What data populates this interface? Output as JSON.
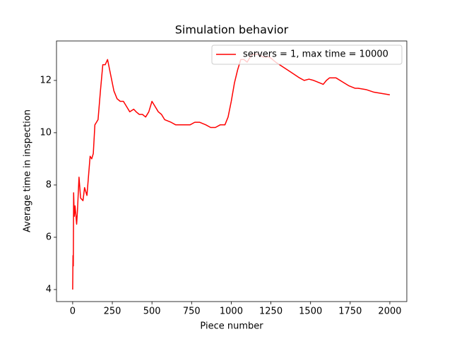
{
  "chart_data": {
    "type": "line",
    "title": "Simulation behavior",
    "x_label": "Piece number",
    "y_label": "Average time in inspection",
    "x": [
      0,
      2,
      4,
      6,
      10,
      15,
      25,
      30,
      40,
      50,
      65,
      75,
      90,
      110,
      120,
      130,
      140,
      150,
      160,
      175,
      190,
      205,
      220,
      240,
      260,
      280,
      300,
      320,
      340,
      360,
      385,
      400,
      420,
      440,
      460,
      480,
      500,
      520,
      540,
      560,
      580,
      620,
      650,
      700,
      740,
      770,
      800,
      840,
      870,
      900,
      930,
      960,
      980,
      1000,
      1020,
      1040,
      1060,
      1080,
      1100,
      1130,
      1170,
      1200,
      1240,
      1280,
      1330,
      1380,
      1430,
      1460,
      1490,
      1520,
      1560,
      1580,
      1600,
      1620,
      1660,
      1700,
      1740,
      1780,
      1800,
      1850,
      1900,
      1950,
      2000
    ],
    "series": [
      {
        "name": "servers = 1, max time = 10000",
        "color": "#ff0000",
        "values": [
          4.0,
          5.3,
          4.9,
          7.7,
          6.8,
          7.2,
          6.5,
          7.0,
          8.3,
          7.5,
          7.4,
          7.9,
          7.6,
          9.1,
          9.0,
          9.2,
          10.3,
          10.4,
          10.5,
          11.6,
          12.6,
          12.6,
          12.8,
          12.2,
          11.6,
          11.3,
          11.2,
          11.2,
          11.0,
          10.8,
          10.9,
          10.8,
          10.7,
          10.7,
          10.6,
          10.8,
          11.2,
          11.0,
          10.8,
          10.7,
          10.5,
          10.4,
          10.3,
          10.3,
          10.3,
          10.4,
          10.4,
          10.3,
          10.2,
          10.2,
          10.3,
          10.3,
          10.6,
          11.2,
          11.9,
          12.4,
          12.8,
          12.8,
          12.7,
          13.0,
          13.0,
          12.9,
          12.9,
          12.7,
          12.5,
          12.3,
          12.1,
          12.0,
          12.05,
          12.0,
          11.9,
          11.85,
          12.0,
          12.1,
          12.1,
          11.95,
          11.8,
          11.7,
          11.7,
          11.65,
          11.55,
          11.5,
          11.45
        ]
      }
    ],
    "xlim": [
      -102,
      2107
    ],
    "xticks": [
      0,
      250,
      500,
      750,
      1000,
      1250,
      1500,
      1750,
      2000
    ],
    "ylim": [
      3.54,
      13.51
    ],
    "yticks": [
      4,
      6,
      8,
      10,
      12
    ],
    "grid": false,
    "legend": "upper right"
  }
}
